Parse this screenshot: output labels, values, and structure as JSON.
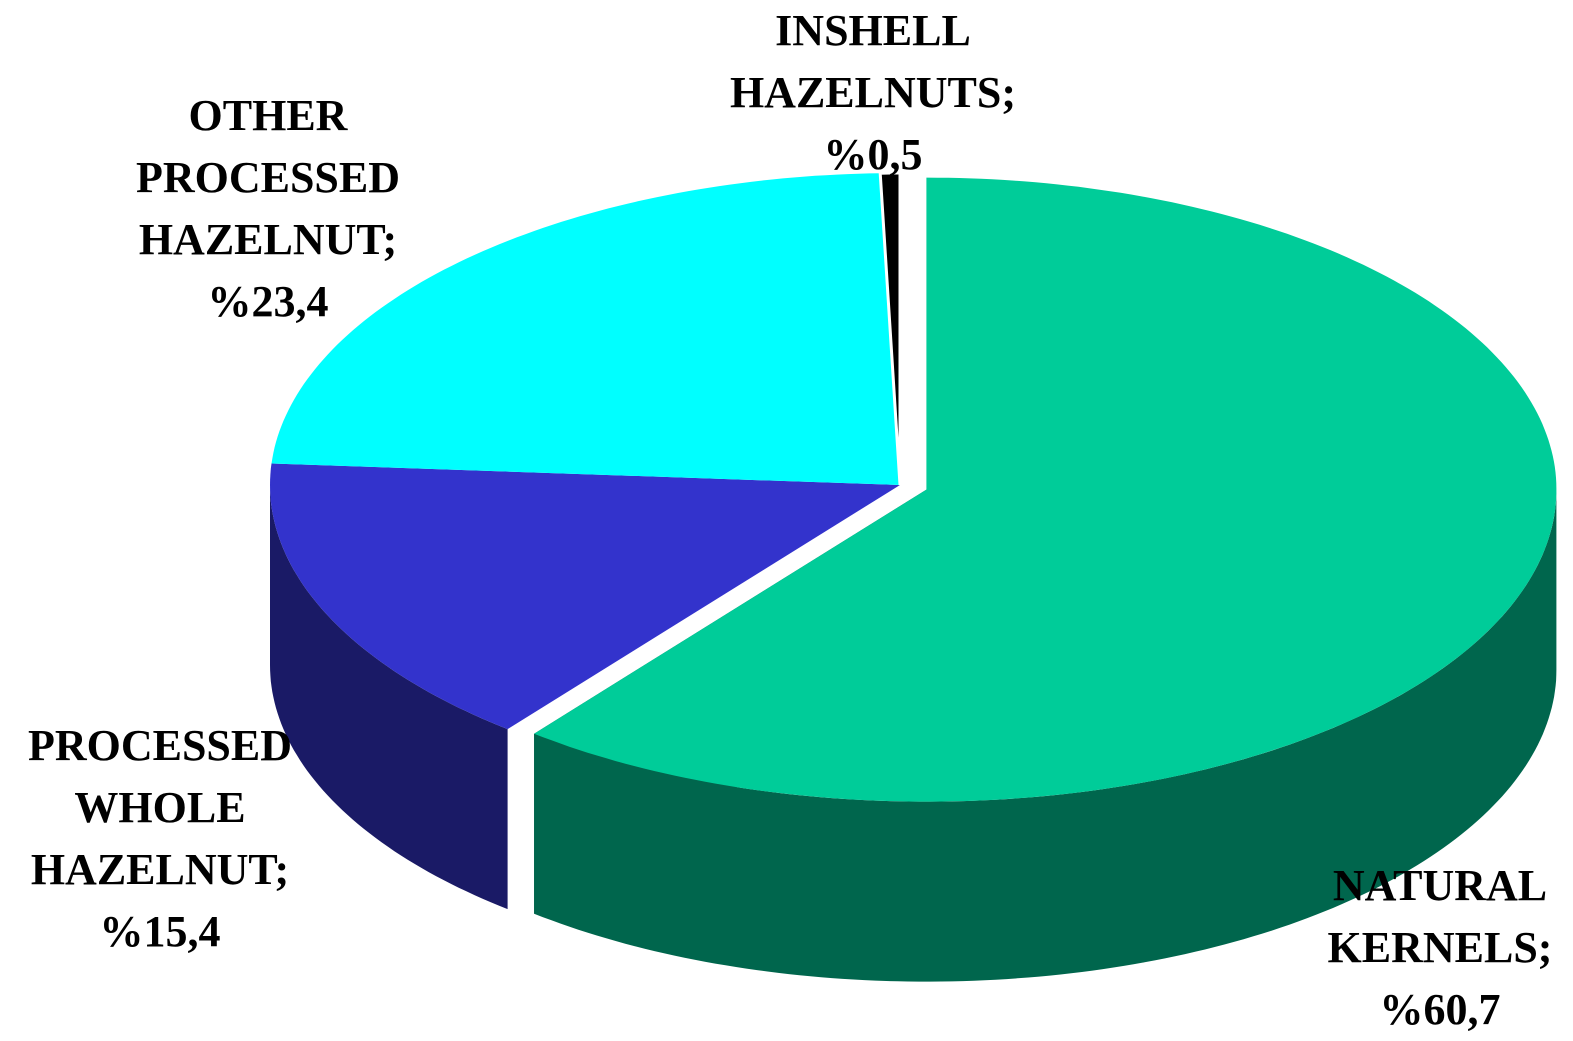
{
  "chart_data": {
    "type": "pie3d",
    "categories": [
      "NATURAL KERNELS;",
      "PROCESSED WHOLE HAZELNUT;",
      "OTHER PROCESSED HAZELNUT;",
      "INSHELL HAZELNUTS;"
    ],
    "values": [
      60.7,
      15.4,
      23.4,
      0.5
    ],
    "value_labels": [
      "%60,7",
      "%15,4",
      "%23,4",
      "%0,5"
    ],
    "colors": [
      "#00cc99",
      "#3333cc",
      "#00ffff",
      "#000000"
    ],
    "exploded": [
      true,
      false,
      false,
      false
    ]
  }
}
